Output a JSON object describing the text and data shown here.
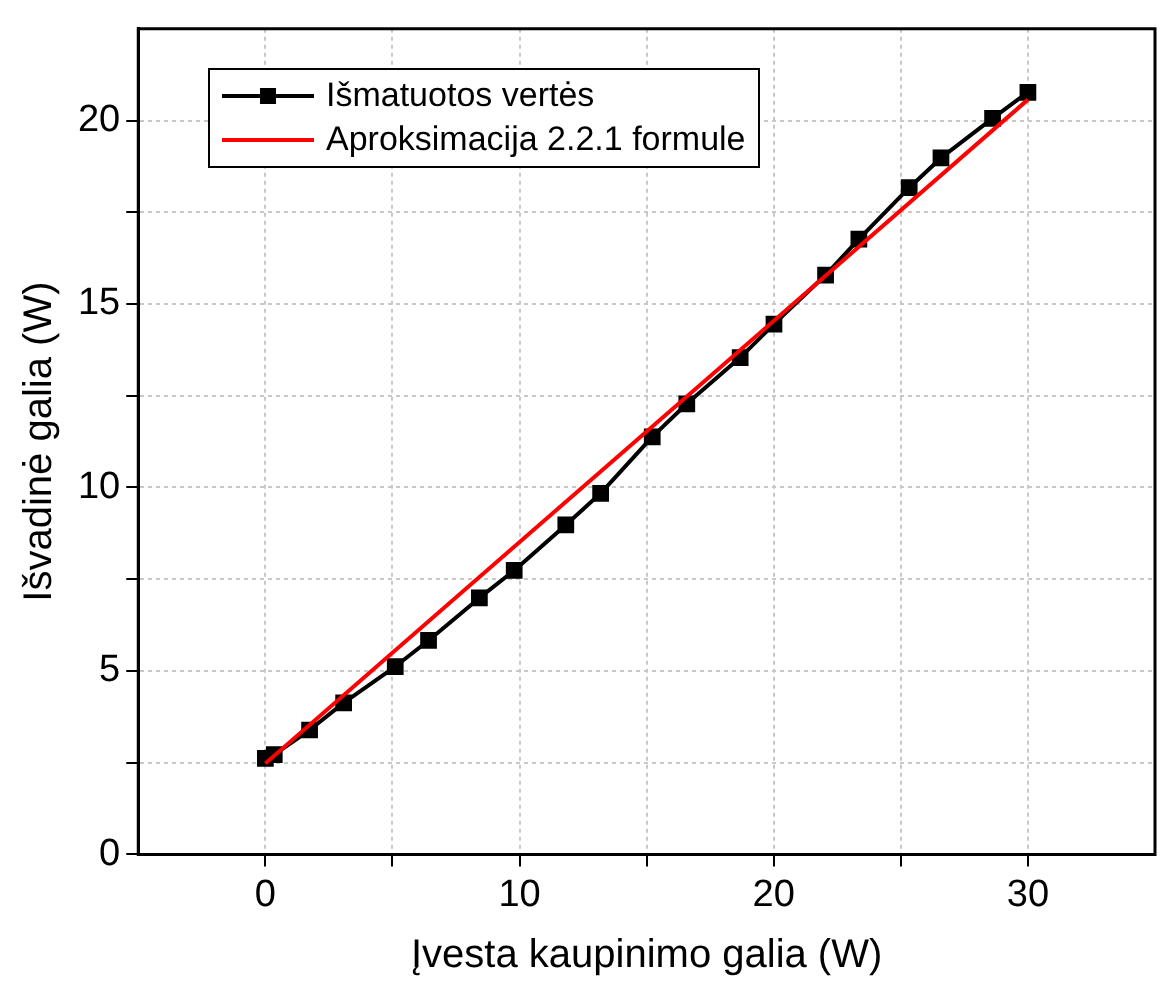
{
  "chart_data": {
    "type": "line",
    "xlabel": "Įvesta kaupinimo galia (W)",
    "ylabel": "Išvadinė galia (W)",
    "xlim": [
      -5,
      35
    ],
    "xticks": [
      0,
      {
        "value": 5,
        "label": null
      },
      10,
      {
        "value": 15,
        "label": null
      },
      20,
      {
        "value": 25,
        "label": null
      },
      30
    ],
    "ylim": [
      0,
      22.5
    ],
    "yticks": [
      0,
      {
        "value": 2.5,
        "label": null
      },
      5,
      {
        "value": 7.5,
        "label": null
      },
      10,
      {
        "value": 12.5,
        "label": null
      },
      15,
      {
        "value": 17.5,
        "label": null
      },
      20
    ],
    "grid": true,
    "legend": "top left",
    "series": [
      {
        "name": "Išmatuotos vertės",
        "color": "#000000",
        "marker": "square",
        "x": [
          0,
          0.35,
          1.74,
          3.08,
          5.11,
          6.42,
          8.42,
          9.79,
          11.82,
          13.19,
          15.22,
          16.58,
          18.68,
          20.01,
          22.04,
          23.35,
          25.33,
          26.58,
          28.61,
          30
        ],
        "values": [
          2.62,
          2.72,
          3.39,
          4.13,
          5.12,
          5.83,
          6.99,
          7.74,
          8.98,
          9.84,
          11.38,
          12.28,
          13.54,
          14.45,
          15.79,
          16.77,
          18.17,
          18.98,
          20.06,
          20.77
        ]
      },
      {
        "name": "Aproksimacija 2.2.1 formule",
        "color": "#ff0000",
        "marker": "none",
        "x": [
          0,
          30
        ],
        "values": [
          2.48,
          20.57
        ]
      }
    ]
  }
}
